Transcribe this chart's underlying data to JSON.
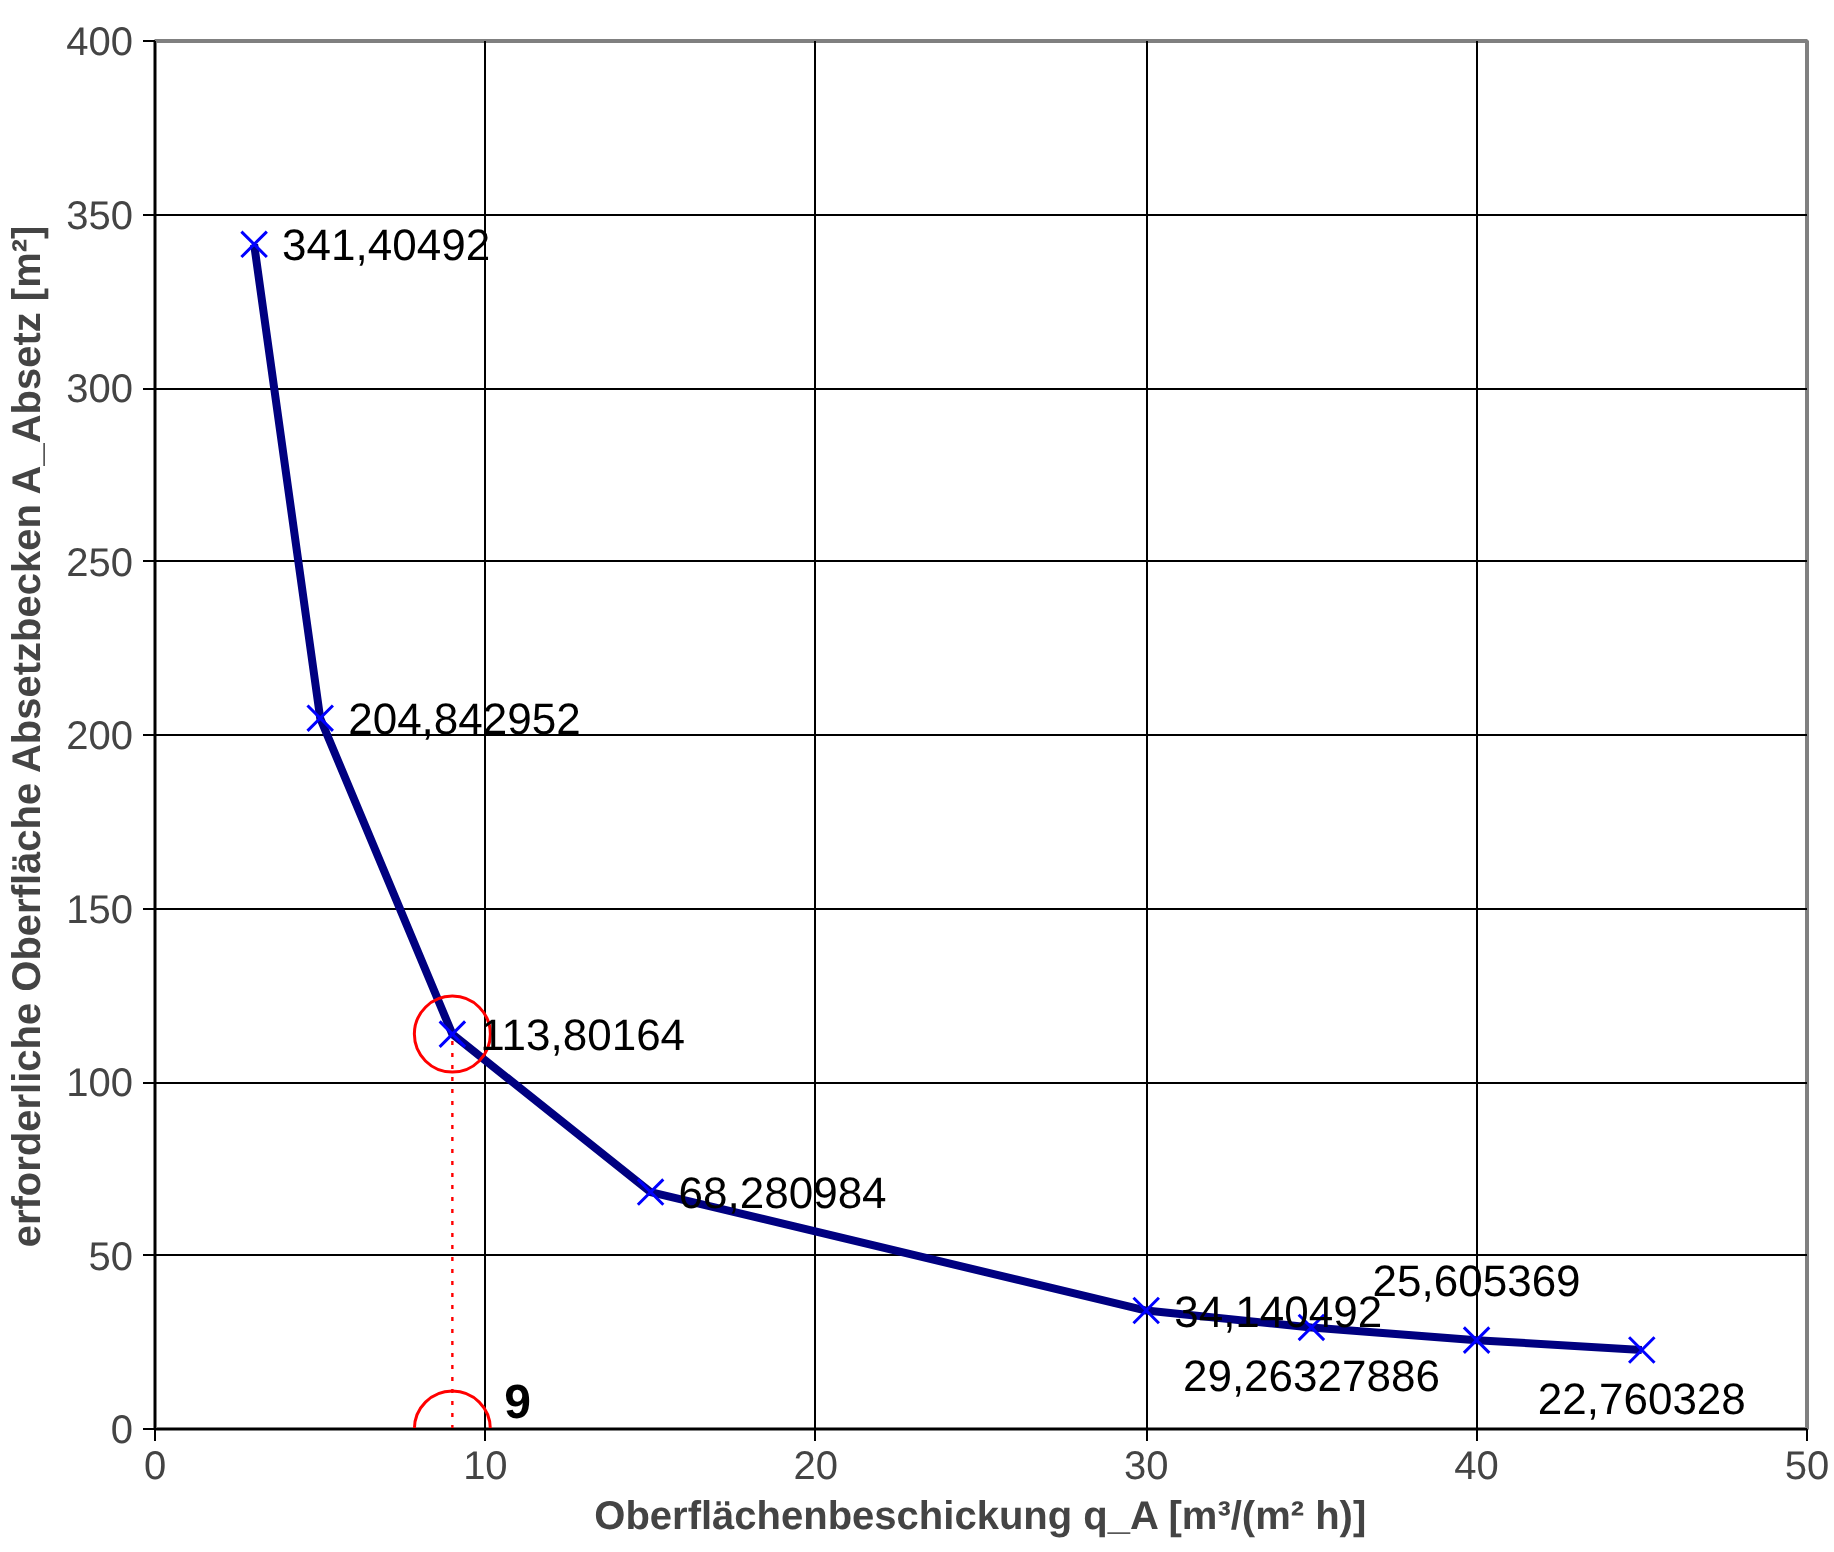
{
  "chart_data": {
    "type": "line",
    "xlabel": "Oberflächenbeschickung q_A [m³/(m² h)]",
    "ylabel": "erforderliche Oberfläche Absetzbecken A_Absetz [m²]",
    "xlim": [
      0,
      50
    ],
    "ylim": [
      0,
      400
    ],
    "xticks": [
      0,
      10,
      20,
      30,
      40,
      50
    ],
    "yticks": [
      0,
      50,
      100,
      150,
      200,
      250,
      300,
      350,
      400
    ],
    "grid": true,
    "series": [
      {
        "color": "#000080",
        "marker": "cross",
        "line_style": "solid",
        "x": [
          3,
          5,
          9,
          15,
          30,
          35,
          40,
          45
        ],
        "values": [
          341.40492,
          204.842952,
          113.80164,
          68.280984,
          34.140492,
          29.26327886,
          25.605369,
          22.760328
        ],
        "value_labels": [
          "341,40492",
          "204,842952",
          "113,80164",
          "68,280984",
          "34,140492",
          "29,26327886",
          "25,605369",
          "22,760328"
        ]
      },
      {
        "color": "#ff0000",
        "marker": "circle",
        "line_style": "dotted",
        "x": [
          9,
          9
        ],
        "values": [
          0,
          113.80164
        ]
      }
    ],
    "annotations": [
      {
        "text": "9",
        "x": 9,
        "y": 0
      }
    ]
  }
}
